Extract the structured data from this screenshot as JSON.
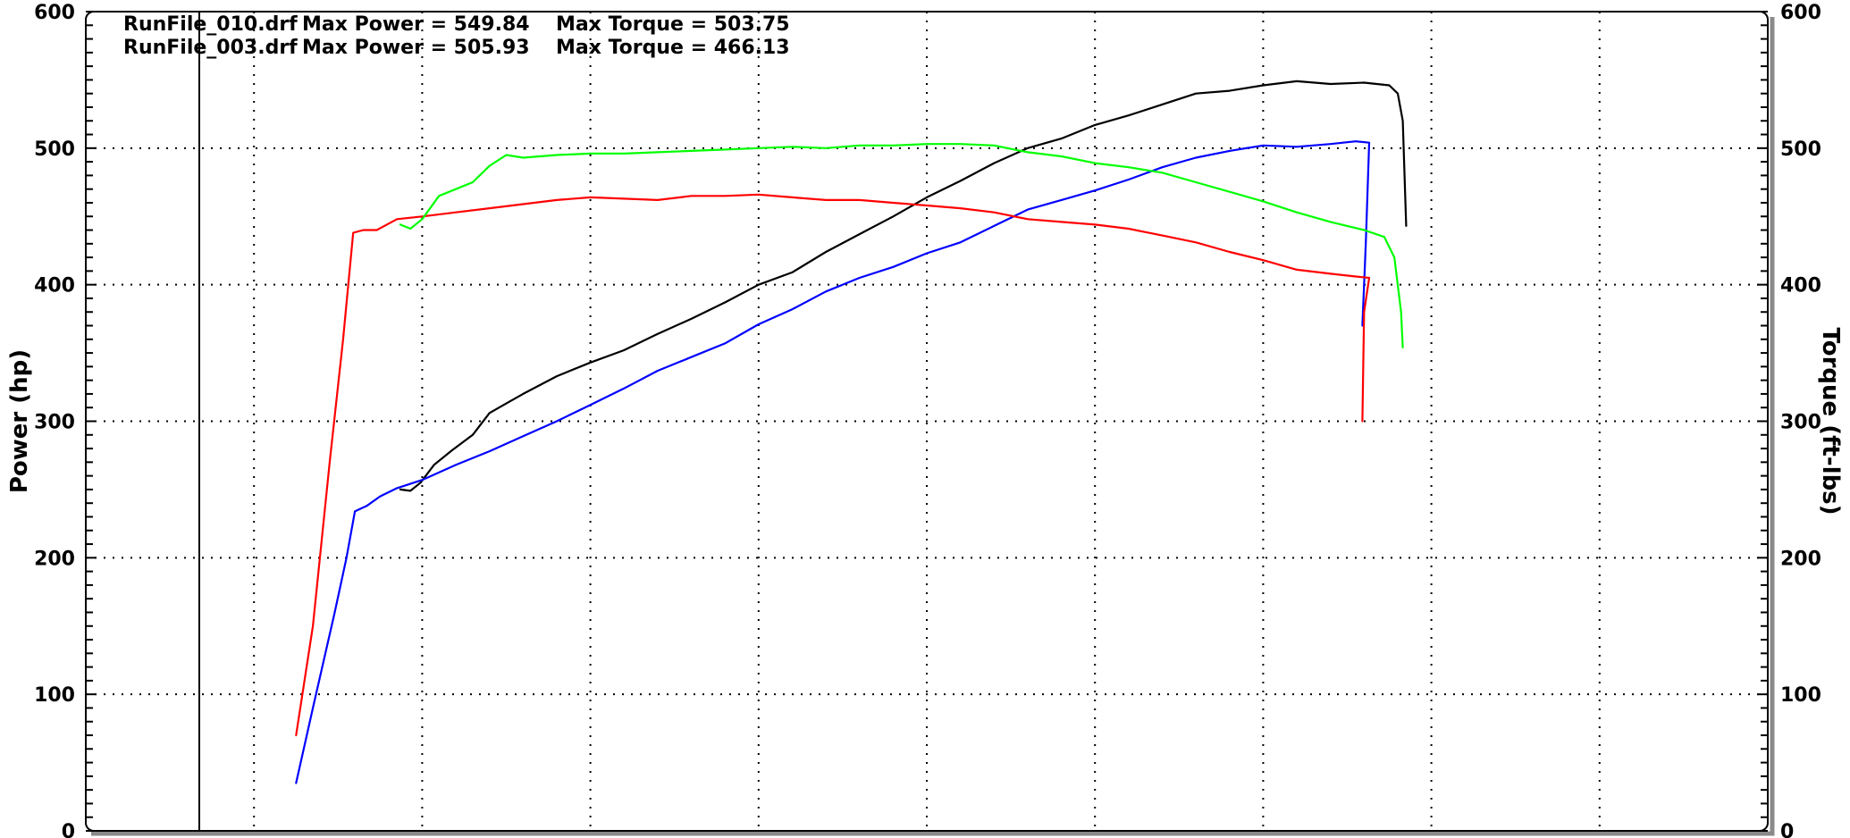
{
  "chart_data": {
    "type": "line",
    "title": "",
    "xlabel": "",
    "ylabel": "Power (hp)",
    "ylabel_right": "Torque (ft-lbs)",
    "ylim": [
      0,
      600
    ],
    "ylim_right": [
      0,
      600
    ],
    "xlim": [
      0,
      100
    ],
    "y_ticks": [
      "0",
      "100",
      "200",
      "300",
      "400",
      "500",
      "600"
    ],
    "y_ticks_right": [
      "0",
      "100",
      "200",
      "300",
      "400",
      "500",
      "600"
    ],
    "grid": true,
    "grid_x": [
      10,
      20,
      30,
      40,
      50,
      60,
      70,
      80,
      90
    ],
    "header_lines": [
      {
        "file": "RunFile_010.drf",
        "power_text": "Max Power = 549.84",
        "torque_text": "Max Torque = 503.75"
      },
      {
        "file": "RunFile_003.drf",
        "power_text": "Max Power = 505.93",
        "torque_text": "Max Torque = 466.13"
      }
    ],
    "series": [
      {
        "color": "#000000",
        "points": [
          [
            18.7,
            250
          ],
          [
            19.3,
            249
          ],
          [
            19.9,
            255
          ],
          [
            20.7,
            268
          ],
          [
            21.8,
            279
          ],
          [
            23.0,
            290
          ],
          [
            24.0,
            306
          ],
          [
            25.0,
            313
          ],
          [
            26.0,
            320
          ],
          [
            28.0,
            333
          ],
          [
            30.0,
            343
          ],
          [
            32.0,
            352
          ],
          [
            34.0,
            364
          ],
          [
            36.0,
            375
          ],
          [
            38.0,
            387
          ],
          [
            40.0,
            400
          ],
          [
            42.0,
            409
          ],
          [
            44.0,
            424
          ],
          [
            46.0,
            437
          ],
          [
            48.0,
            450
          ],
          [
            50.0,
            464
          ],
          [
            52.0,
            476
          ],
          [
            54.0,
            489
          ],
          [
            56.0,
            500
          ],
          [
            58.0,
            507
          ],
          [
            60.0,
            517
          ],
          [
            62.0,
            524
          ],
          [
            64.0,
            532
          ],
          [
            66.0,
            540
          ],
          [
            68.0,
            542
          ],
          [
            70.0,
            546
          ],
          [
            72.0,
            549
          ],
          [
            74.0,
            547
          ],
          [
            76.0,
            548
          ],
          [
            77.5,
            546
          ],
          [
            78.0,
            540
          ],
          [
            78.3,
            520
          ],
          [
            78.5,
            443
          ]
        ]
      },
      {
        "color": "#0000ff",
        "points": [
          [
            12.5,
            35
          ],
          [
            13.5,
            90
          ],
          [
            14.8,
            160
          ],
          [
            15.5,
            200
          ],
          [
            16.0,
            234
          ],
          [
            16.7,
            238
          ],
          [
            17.5,
            245
          ],
          [
            18.5,
            251
          ],
          [
            20.0,
            257
          ],
          [
            22.0,
            268
          ],
          [
            24.0,
            278
          ],
          [
            26.0,
            289
          ],
          [
            28.0,
            300
          ],
          [
            30.0,
            312
          ],
          [
            32.0,
            324
          ],
          [
            34.0,
            337
          ],
          [
            36.0,
            347
          ],
          [
            38.0,
            357
          ],
          [
            40.0,
            371
          ],
          [
            42.0,
            382
          ],
          [
            44.0,
            395
          ],
          [
            46.0,
            405
          ],
          [
            48.0,
            413
          ],
          [
            50.0,
            423
          ],
          [
            52.0,
            431
          ],
          [
            54.0,
            443
          ],
          [
            56.0,
            455
          ],
          [
            58.0,
            462
          ],
          [
            60.0,
            469
          ],
          [
            62.0,
            477
          ],
          [
            64.0,
            486
          ],
          [
            66.0,
            493
          ],
          [
            68.0,
            498
          ],
          [
            70.0,
            502
          ],
          [
            72.0,
            501
          ],
          [
            74.0,
            503
          ],
          [
            75.5,
            505
          ],
          [
            76.3,
            504
          ],
          [
            76.1,
            430
          ],
          [
            75.9,
            370
          ]
        ]
      },
      {
        "color": "#ff0000",
        "points": [
          [
            12.5,
            70
          ],
          [
            13.5,
            150
          ],
          [
            14.5,
            270
          ],
          [
            15.3,
            360
          ],
          [
            15.9,
            438
          ],
          [
            16.5,
            440
          ],
          [
            17.3,
            440
          ],
          [
            18.5,
            448
          ],
          [
            20.0,
            450
          ],
          [
            22.0,
            453
          ],
          [
            24.0,
            456
          ],
          [
            26.0,
            459
          ],
          [
            28.0,
            462
          ],
          [
            30.0,
            464
          ],
          [
            32.0,
            463
          ],
          [
            34.0,
            462
          ],
          [
            36.0,
            465
          ],
          [
            38.0,
            465
          ],
          [
            40.0,
            466
          ],
          [
            42.0,
            464
          ],
          [
            44.0,
            462
          ],
          [
            46.0,
            462
          ],
          [
            48.0,
            460
          ],
          [
            50.0,
            458
          ],
          [
            52.0,
            456
          ],
          [
            54.0,
            453
          ],
          [
            56.0,
            448
          ],
          [
            58.0,
            446
          ],
          [
            60.0,
            444
          ],
          [
            62.0,
            441
          ],
          [
            64.0,
            436
          ],
          [
            66.0,
            431
          ],
          [
            68.0,
            424
          ],
          [
            70.0,
            418
          ],
          [
            72.0,
            411
          ],
          [
            74.0,
            408
          ],
          [
            75.5,
            406
          ],
          [
            76.3,
            405
          ],
          [
            76.0,
            380
          ],
          [
            75.9,
            300
          ]
        ]
      },
      {
        "color": "#00ff00",
        "points": [
          [
            18.7,
            444
          ],
          [
            19.3,
            441
          ],
          [
            20.0,
            448
          ],
          [
            21.0,
            465
          ],
          [
            22.0,
            470
          ],
          [
            23.0,
            475
          ],
          [
            24.0,
            487
          ],
          [
            25.0,
            495
          ],
          [
            26.0,
            493
          ],
          [
            28.0,
            495
          ],
          [
            30.0,
            496
          ],
          [
            32.0,
            496
          ],
          [
            34.0,
            497
          ],
          [
            36.0,
            498
          ],
          [
            38.0,
            499
          ],
          [
            40.0,
            500
          ],
          [
            42.0,
            501
          ],
          [
            44.0,
            500
          ],
          [
            46.0,
            502
          ],
          [
            48.0,
            502
          ],
          [
            50.0,
            503
          ],
          [
            52.0,
            503
          ],
          [
            54.0,
            502
          ],
          [
            56.0,
            497
          ],
          [
            58.0,
            494
          ],
          [
            60.0,
            489
          ],
          [
            62.0,
            486
          ],
          [
            64.0,
            482
          ],
          [
            66.0,
            475
          ],
          [
            68.0,
            468
          ],
          [
            70.0,
            461
          ],
          [
            72.0,
            453
          ],
          [
            74.0,
            446
          ],
          [
            76.0,
            440
          ],
          [
            77.2,
            435
          ],
          [
            77.8,
            420
          ],
          [
            78.2,
            380
          ],
          [
            78.3,
            354
          ]
        ]
      }
    ]
  }
}
